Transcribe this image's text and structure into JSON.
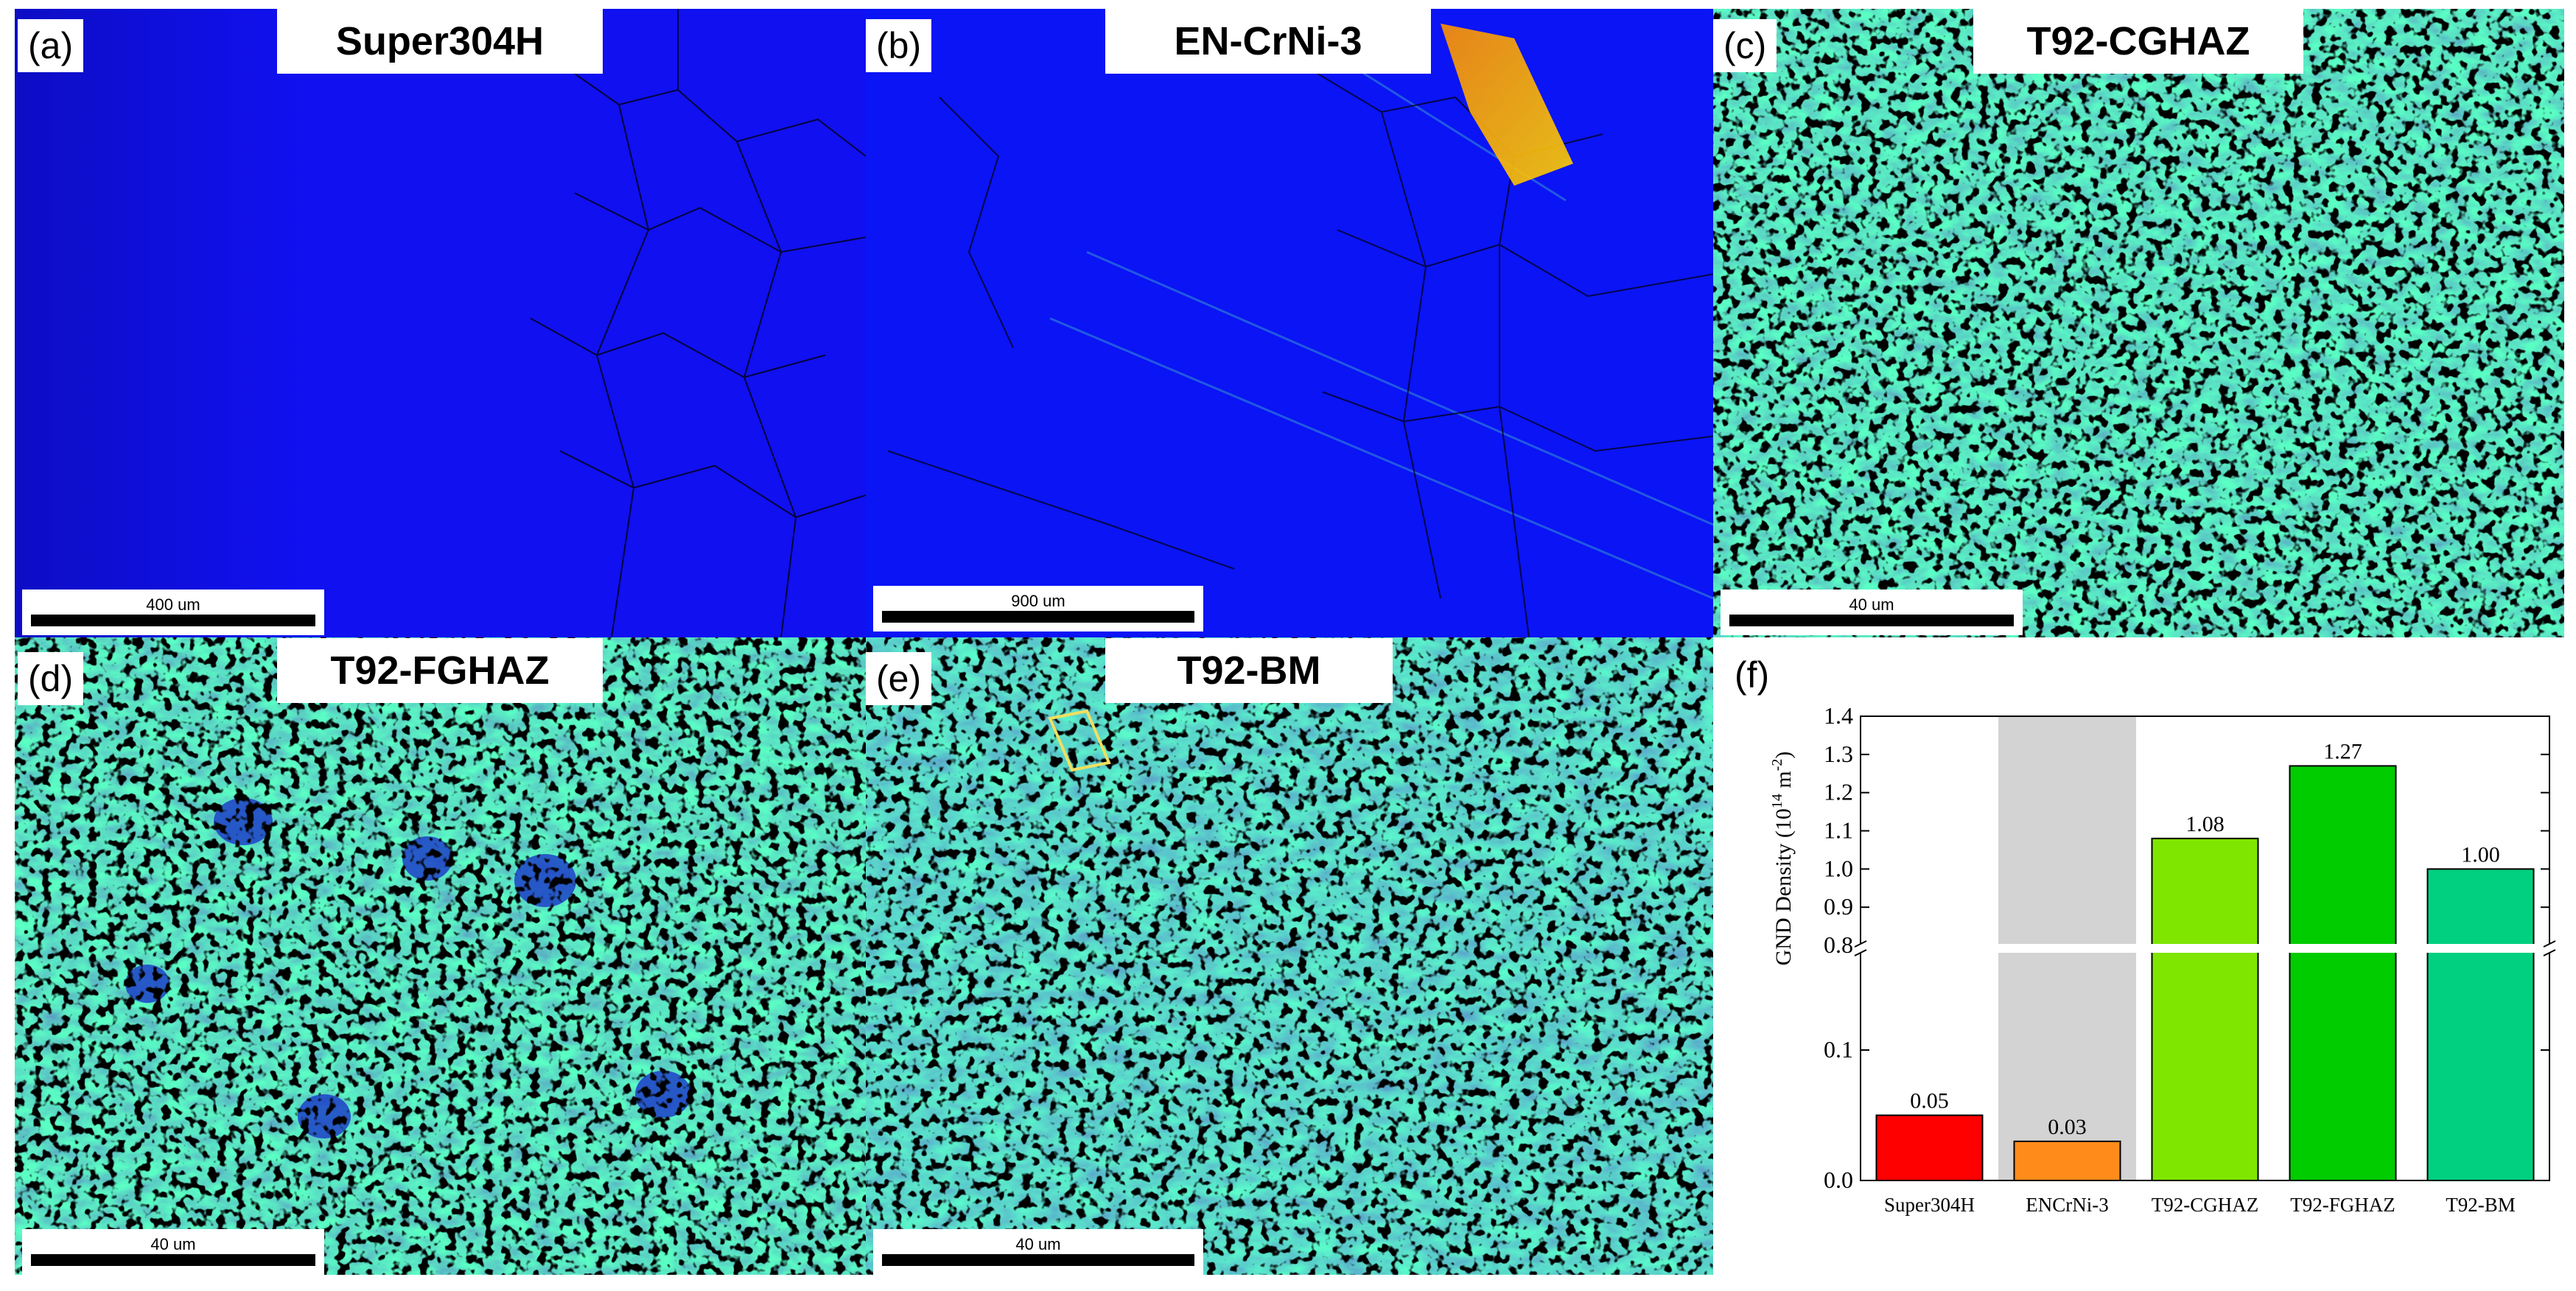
{
  "panels": [
    {
      "letter": "(a)",
      "title": "Super304H",
      "scale": "400 um"
    },
    {
      "letter": "(b)",
      "title": "EN-CrNi-3",
      "scale": "900 um"
    },
    {
      "letter": "(c)",
      "title": "T92-CGHAZ",
      "scale": "40 um"
    },
    {
      "letter": "(d)",
      "title": "T92-FGHAZ",
      "scale": "40 um"
    },
    {
      "letter": "(e)",
      "title": "T92-BM",
      "scale": "40 um"
    }
  ],
  "chart_letter": "(f)",
  "chart_data": {
    "type": "bar",
    "categories": [
      "Super304H",
      "ENCrNi-3",
      "T92-CGHAZ",
      "T92-FGHAZ",
      "T92-BM"
    ],
    "values": [
      0.05,
      0.03,
      1.08,
      1.27,
      1.0
    ],
    "value_labels": [
      "0.05",
      "0.03",
      "1.08",
      "1.27",
      "1.00"
    ],
    "ylabel_text": "GND Density (10",
    "ylabel_exp1": "14",
    "ylabel_mid": " m",
    "ylabel_exp2": "-2",
    "ylabel_end": ")",
    "y_axis": "broken",
    "ylim_lower": [
      0.0,
      0.15
    ],
    "ylim_upper": [
      0.8,
      1.4
    ],
    "yticks_lower": [
      "0.0",
      "0.1"
    ],
    "yticks_upper": [
      "0.8",
      "0.9",
      "1.0",
      "1.1",
      "1.2",
      "1.3",
      "1.4"
    ],
    "highlight_category": "ENCrNi-3",
    "colors": [
      "#ff0000",
      "#ff8c1a",
      "#7fe600",
      "#00cc00",
      "#00d080"
    ],
    "highlight_color": "#d3d3d3"
  }
}
